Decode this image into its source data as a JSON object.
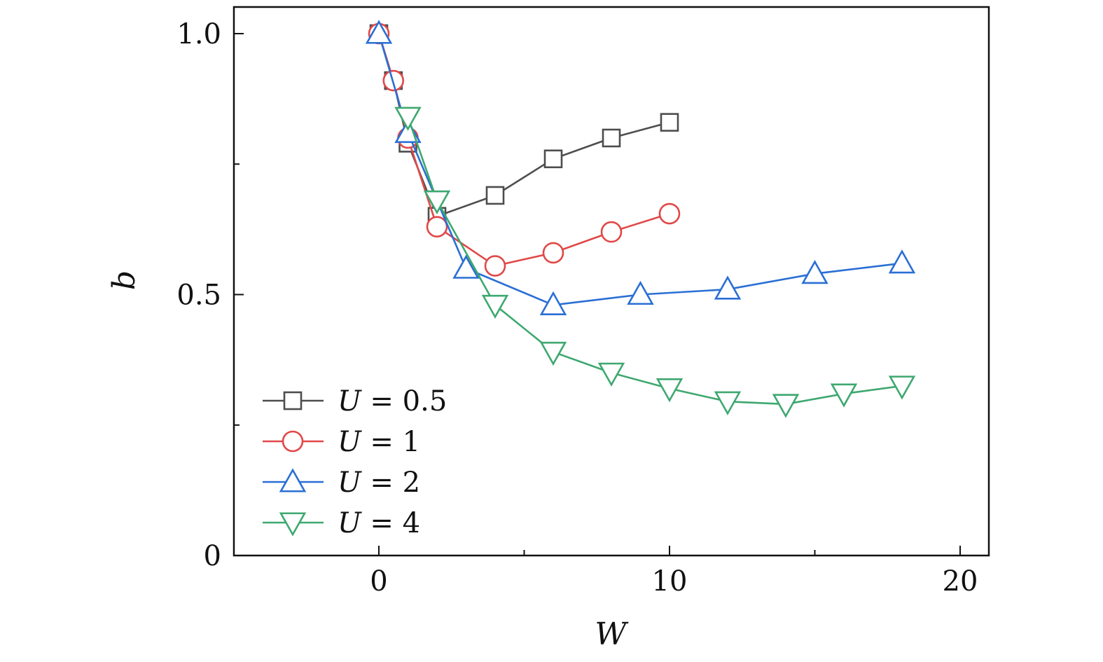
{
  "chart_data": {
    "type": "line",
    "title": "",
    "xlabel": "W",
    "ylabel": "b",
    "xlim": [
      -5,
      21
    ],
    "ylim": [
      0,
      1.05
    ],
    "xticks": [
      0,
      10,
      20
    ],
    "xtick_labels": [
      "0",
      "10",
      "20"
    ],
    "xminor_ticks": [
      5,
      15
    ],
    "yticks": [
      0,
      0.5,
      1.0
    ],
    "ytick_labels": [
      "0",
      "0.5",
      "1.0"
    ],
    "yminor_ticks": [
      0.25,
      0.75
    ],
    "grid": false,
    "legend_position": "bottom-left",
    "series": [
      {
        "name": "U = 0.5",
        "legend_label": "U = 0.5",
        "marker": "square",
        "color": "#4d4d4d",
        "x": [
          0,
          0.5,
          1,
          2,
          4,
          6,
          8,
          10
        ],
        "y": [
          1.0,
          0.91,
          0.79,
          0.65,
          0.69,
          0.76,
          0.8,
          0.83
        ]
      },
      {
        "name": "U = 1",
        "legend_label": "U = 1",
        "marker": "circle",
        "color": "#e04848",
        "x": [
          0,
          0.5,
          1,
          2,
          4,
          6,
          8,
          10
        ],
        "y": [
          1.0,
          0.91,
          0.8,
          0.63,
          0.555,
          0.58,
          0.62,
          0.655
        ]
      },
      {
        "name": "U = 2",
        "legend_label": "U = 2",
        "marker": "triangle-up",
        "color": "#2a6fd4",
        "x": [
          0,
          1,
          3,
          6,
          9,
          12,
          15,
          18
        ],
        "y": [
          1.0,
          0.81,
          0.55,
          0.48,
          0.5,
          0.51,
          0.54,
          0.56
        ]
      },
      {
        "name": "U = 4",
        "legend_label": "U = 4",
        "marker": "triangle-down",
        "color": "#3ea870",
        "x": [
          1,
          2,
          4,
          6,
          8,
          10,
          12,
          14,
          16,
          18
        ],
        "y": [
          0.84,
          0.68,
          0.48,
          0.39,
          0.35,
          0.32,
          0.295,
          0.29,
          0.31,
          0.325
        ]
      }
    ]
  }
}
